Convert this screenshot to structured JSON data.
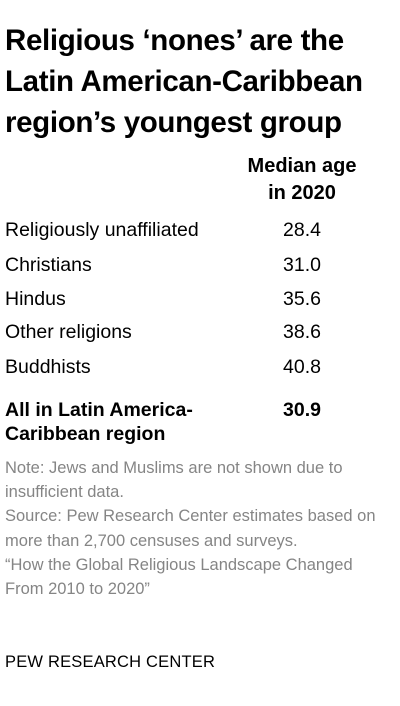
{
  "header": {
    "title_lines": [
      "Religious ‘nones’ are the",
      "Latin American-Caribbean",
      "region’s youngest group"
    ]
  },
  "chart_data": {
    "type": "table",
    "column_header_lines": [
      "Median age",
      "in 2020"
    ],
    "rows": [
      {
        "label": "Religiously unaffiliated",
        "value": "28.4"
      },
      {
        "label": "Christians",
        "value": "31.0"
      },
      {
        "label": "Hindus",
        "value": "35.6"
      },
      {
        "label": "Other religions",
        "value": "38.6"
      },
      {
        "label": "Buddhists",
        "value": "40.8"
      }
    ],
    "total": {
      "label_lines": [
        "All in Latin America-",
        "Caribbean region"
      ],
      "value": "30.9"
    }
  },
  "footer": {
    "note": "Note: Jews and Muslims are not shown due to insufficient data.",
    "source": "Source: Pew Research Center estimates based on more than 2,700 censuses and surveys.",
    "report": "“How the Global Religious Landscape Changed From 2010 to 2020”",
    "brand": "PEW RESEARCH CENTER"
  }
}
